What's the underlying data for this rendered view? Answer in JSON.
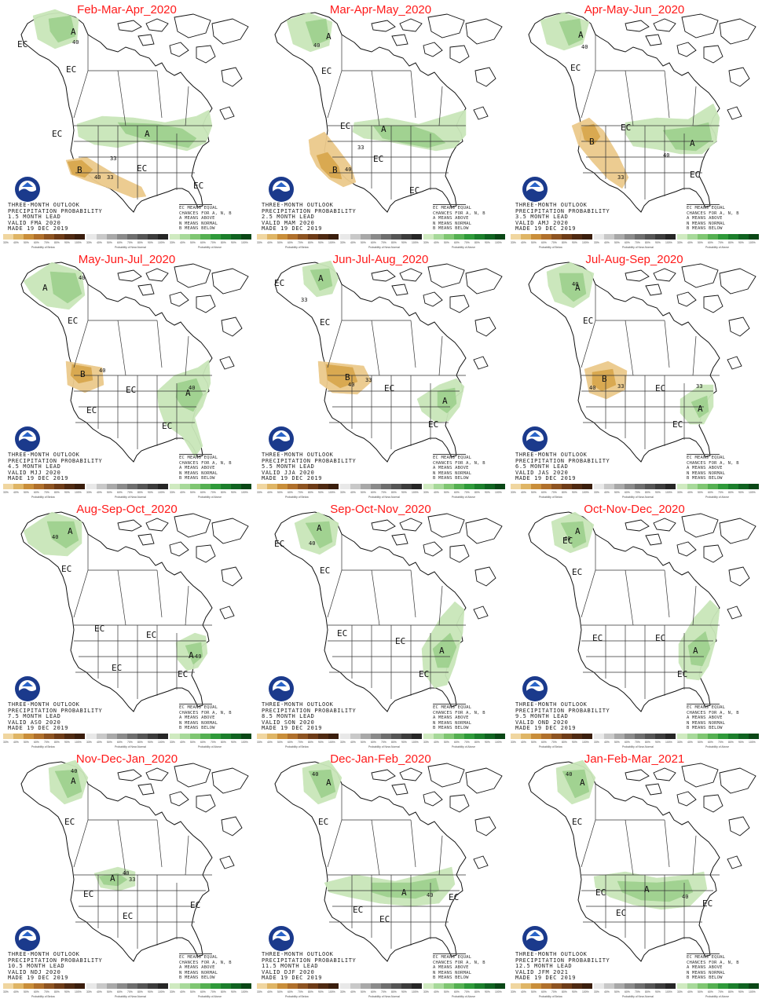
{
  "panels": [
    {
      "title": "Feb-Mar-Apr_2020",
      "lead": "1.5 MONTH LEAD",
      "valid": "VALID FMA 2020"
    },
    {
      "title": "Mar-Apr-May_2020",
      "lead": "2.5 MONTH LEAD",
      "valid": "VALID MAM 2020"
    },
    {
      "title": "Apr-May-Jun_2020",
      "lead": "3.5 MONTH LEAD",
      "valid": "VALID AMJ 2020"
    },
    {
      "title": "May-Jun-Jul_2020",
      "lead": "4.5 MONTH LEAD",
      "valid": "VALID MJJ 2020"
    },
    {
      "title": "Jun-Jul-Aug_2020",
      "lead": "5.5 MONTH LEAD",
      "valid": "VALID JJA 2020"
    },
    {
      "title": "Jul-Aug-Sep_2020",
      "lead": "6.5 MONTH LEAD",
      "valid": "VALID JAS 2020"
    },
    {
      "title": "Aug-Sep-Oct_2020",
      "lead": "7.5 MONTH LEAD",
      "valid": "VALID ASO 2020"
    },
    {
      "title": "Sep-Oct-Nov_2020",
      "lead": "8.5 MONTH LEAD",
      "valid": "VALID SON 2020"
    },
    {
      "title": "Oct-Nov-Dec_2020",
      "lead": "9.5 MONTH LEAD",
      "valid": "VALID OND 2020"
    },
    {
      "title": "Nov-Dec-Jan_2020",
      "lead": "10.5 MONTH LEAD",
      "valid": "VALID NDJ 2020"
    },
    {
      "title": "Dec-Jan-Feb_2020",
      "lead": "11.5 MONTH LEAD",
      "valid": "VALID DJF 2020"
    },
    {
      "title": "Jan-Feb-Mar_2021",
      "lead": "12.5 MONTH LEAD",
      "valid": "VALID JFM 2021"
    }
  ],
  "common": {
    "outlook": "THREE-MONTH OUTLOOK",
    "variable": "PRECIPITATION PROBABILITY",
    "made": "MADE 19 DEC 2019",
    "key_ec": "EC MEANS EQUAL",
    "key_chances": "CHANCES FOR A, N, B",
    "key_a": "A MEANS ABOVE",
    "key_n": "N MEANS NORMAL",
    "key_b": "B MEANS BELOW",
    "map_labels": {
      "ec": "EC",
      "above": "A",
      "below": "B",
      "p33": "33",
      "p40": "40"
    },
    "legend": {
      "below_label": "Probability of Below",
      "normal_label": "Probability of Near-Normal",
      "above_label": "Probability of Above",
      "pct": [
        "33%",
        "40%",
        "50%",
        "60%",
        "70%",
        "80%",
        "90%",
        "100%"
      ]
    }
  },
  "colors": {
    "title": "#ff1a1a",
    "above_40": "#9fd18f",
    "above_33": "#c9e6b9",
    "below_40": "#d9a84e",
    "below_33": "#ecca8c",
    "below_scale": [
      "#f0d6a0",
      "#dfb565",
      "#c98e3a",
      "#b0702c",
      "#8e5422",
      "#6e3c18",
      "#4f2a12",
      "#3a1e0d"
    ],
    "normal_scale": [
      "#e8e8e8",
      "#c8c8c8",
      "#a8a8a8",
      "#8a8a8a",
      "#6e6e6e",
      "#555555",
      "#3c3c3c",
      "#262626"
    ],
    "above_scale": [
      "#cfeac0",
      "#a7d99a",
      "#7fc672",
      "#55b052",
      "#2f9a3a",
      "#1c7f2c",
      "#106321",
      "#0a4716"
    ]
  }
}
